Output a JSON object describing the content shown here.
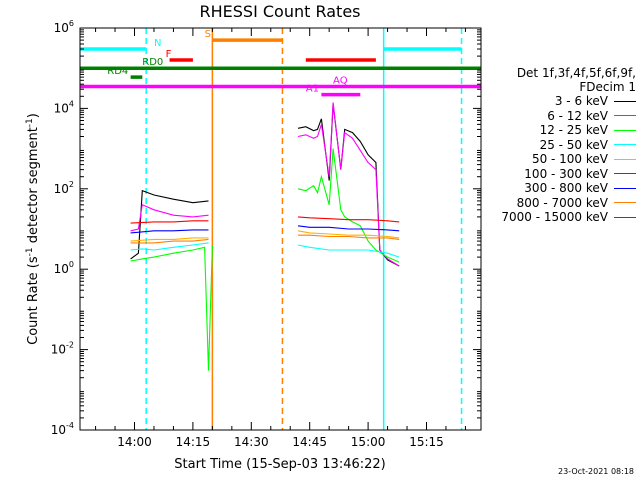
{
  "chart_data": {
    "type": "line",
    "title": "RHESSI Count Rates",
    "xlabel": "Start Time (15-Sep-03 13:46:22)",
    "ylabel_main": "Count Rate (s",
    "ylabel_sup1": "-1",
    "ylabel_mid": " detector segment",
    "ylabel_sup2": "-1",
    "ylabel_end": ")",
    "xlim": [
      "13:46",
      "15:29"
    ],
    "x_ticks": [
      "14:00",
      "14:15",
      "14:30",
      "14:45",
      "15:00",
      "15:15"
    ],
    "y_scale": "log",
    "ylim": [
      0.0001,
      1000000
    ],
    "y_ticks": [
      {
        "base": "10",
        "exp": "-4"
      },
      {
        "base": "10",
        "exp": "-2"
      },
      {
        "base": "10",
        "exp": "0"
      },
      {
        "base": "10",
        "exp": "2"
      },
      {
        "base": "10",
        "exp": "4"
      },
      {
        "base": "10",
        "exp": "6"
      }
    ],
    "legend_header": [
      "Det 1f,3f,4f,5f,6f,9f,",
      "FDecim 1"
    ],
    "series": [
      {
        "name": "3 - 6 keV",
        "color": "#000000",
        "segments": [
          {
            "x": [
              "13:59",
              "14:01",
              "14:02",
              "14:05",
              "14:10",
              "14:15",
              "14:19"
            ],
            "y": [
              1.8,
              2.5,
              90,
              70,
              55,
              45,
              50
            ]
          },
          {
            "x": [
              "14:42",
              "14:44",
              "14:46",
              "14:47",
              "14:48",
              "14:50",
              "14:51",
              "14:53",
              "14:54",
              "14:56",
              "14:58",
              "15:00",
              "15:02",
              "15:03",
              "15:05",
              "15:08"
            ],
            "y": [
              3200,
              3500,
              2800,
              3000,
              5500,
              160,
              13000,
              300,
              3000,
              2500,
              1500,
              700,
              450,
              3,
              1.7,
              1.2
            ]
          }
        ]
      },
      {
        "name": "6 - 12 keV",
        "color": "#ff00ff",
        "segments": [
          {
            "x": [
              "13:59",
              "14:01",
              "14:02",
              "14:05",
              "14:10",
              "14:15",
              "14:19"
            ],
            "y": [
              9,
              10,
              40,
              30,
              22,
              20,
              22
            ]
          },
          {
            "x": [
              "14:42",
              "14:44",
              "14:46",
              "14:47",
              "14:48",
              "14:50",
              "14:51",
              "14:53",
              "14:54",
              "14:56",
              "14:58",
              "15:00",
              "15:02",
              "15:03",
              "15:05",
              "15:08"
            ],
            "y": [
              2000,
              2200,
              1800,
              2000,
              4000,
              200,
              14000,
              300,
              2500,
              1800,
              900,
              450,
              300,
              3,
              1.8,
              1.2
            ]
          }
        ]
      },
      {
        "name": "12 - 25 keV",
        "color": "#00ff00",
        "segments": [
          {
            "x": [
              "13:59",
              "14:02",
              "14:05",
              "14:10",
              "14:15",
              "14:18",
              "14:19",
              "14:20"
            ],
            "y": [
              1.6,
              1.8,
              2,
              2.5,
              3,
              3.5,
              0.003,
              4
            ]
          },
          {
            "x": [
              "14:42",
              "14:44",
              "14:46",
              "14:47",
              "14:48",
              "14:50",
              "14:51",
              "14:53",
              "14:54",
              "14:56",
              "14:58",
              "15:00",
              "15:02",
              "15:05",
              "15:08"
            ],
            "y": [
              100,
              90,
              120,
              80,
              200,
              40,
              1000,
              30,
              20,
              15,
              12,
              5,
              3,
              2,
              1.5
            ]
          }
        ]
      },
      {
        "name": "25 - 50 keV",
        "color": "#00ffff",
        "segments": [
          {
            "x": [
              "13:59",
              "14:02",
              "14:05",
              "14:10",
              "14:15",
              "14:19"
            ],
            "y": [
              3,
              3.2,
              3,
              3.5,
              4,
              4.5
            ]
          },
          {
            "x": [
              "14:42",
              "14:45",
              "14:50",
              "14:55",
              "15:00",
              "15:05",
              "15:08"
            ],
            "y": [
              4,
              3.5,
              3,
              3,
              3,
              2.5,
              2
            ]
          }
        ]
      },
      {
        "name": "50 - 100 keV",
        "color": "#ffb000",
        "segments": [
          {
            "x": [
              "13:59",
              "14:05",
              "14:10",
              "14:15",
              "14:19"
            ],
            "y": [
              5,
              5.5,
              5.5,
              6,
              6
            ]
          },
          {
            "x": [
              "14:42",
              "14:45",
              "14:50",
              "14:55",
              "15:00",
              "15:05",
              "15:08"
            ],
            "y": [
              9,
              8,
              7.5,
              7,
              7,
              6.5,
              6
            ]
          }
        ]
      },
      {
        "name": "100 - 300 keV",
        "color": "#ff0000",
        "segments": [
          {
            "x": [
              "13:59",
              "14:05",
              "14:10",
              "14:15",
              "14:19"
            ],
            "y": [
              14,
              15,
              15,
              16,
              16
            ]
          },
          {
            "x": [
              "14:42",
              "14:45",
              "14:50",
              "14:55",
              "15:00",
              "15:05",
              "15:08"
            ],
            "y": [
              20,
              19,
              18,
              17,
              17,
              16,
              15
            ]
          }
        ]
      },
      {
        "name": "300 - 800 keV",
        "color": "#0000ff",
        "segments": [
          {
            "x": [
              "13:59",
              "14:05",
              "14:10",
              "14:15",
              "14:19"
            ],
            "y": [
              8,
              9,
              9,
              9.5,
              9.5
            ]
          },
          {
            "x": [
              "14:42",
              "14:45",
              "14:50",
              "14:55",
              "15:00",
              "15:05",
              "15:08"
            ],
            "y": [
              12,
              11,
              11,
              10,
              10,
              9.5,
              9
            ]
          }
        ]
      },
      {
        "name": "800 - 7000 keV",
        "color": "#ff8000",
        "segments": [
          {
            "x": [
              "13:59",
              "14:05",
              "14:10",
              "14:15",
              "14:19"
            ],
            "y": [
              4.5,
              4.5,
              5,
              5,
              5.5
            ]
          },
          {
            "x": [
              "14:42",
              "14:45",
              "14:50",
              "14:55",
              "15:00",
              "15:05",
              "15:08"
            ],
            "y": [
              7,
              7,
              6.5,
              6.5,
              6,
              6,
              5.5
            ]
          }
        ]
      },
      {
        "name": "7000 - 15000 keV",
        "color": "#008000",
        "segments": []
      }
    ],
    "vlines": [
      {
        "x": "14:03",
        "color": "#00ffff",
        "style": "dashed"
      },
      {
        "x": "14:20",
        "color": "#ff8000",
        "style": "solid"
      },
      {
        "x": "14:38",
        "color": "#ff8000",
        "style": "dashed"
      },
      {
        "x": "15:04",
        "color": "#00ffff",
        "style": "solid"
      },
      {
        "x": "15:24",
        "color": "#00ffff",
        "style": "dashed"
      }
    ],
    "flag_bars": [
      {
        "label": "N",
        "color": "#00ffff",
        "segments": [
          [
            "13:46",
            "14:03"
          ],
          [
            "15:04",
            "15:24"
          ]
        ],
        "level": 300000,
        "label_at": "14:05"
      },
      {
        "label": "F",
        "color": "#ff0000",
        "segments": [
          [
            "14:09",
            "14:15"
          ],
          [
            "14:44",
            "15:02"
          ]
        ],
        "level": 160000,
        "label_at": "14:08"
      },
      {
        "label": "S",
        "color": "#ff8000",
        "segments": [
          [
            "14:20",
            "14:38"
          ]
        ],
        "level": 500000,
        "label_at": "14:18"
      },
      {
        "label": "RD0",
        "color": "#008000",
        "segments": [
          [
            "13:46",
            "15:29"
          ]
        ],
        "level": 100000,
        "label_at": "14:02"
      },
      {
        "label": "RD4",
        "color": "#008000",
        "segments": [
          [
            "13:59",
            "14:02"
          ]
        ],
        "level": 60000,
        "label_at": "13:53"
      },
      {
        "label": "AQ",
        "color": "#ff00ff",
        "segments": [
          [
            "13:46",
            "15:29"
          ]
        ],
        "level": 35000,
        "label_at": "14:51"
      },
      {
        "label": "A1",
        "color": "#ff00ff",
        "segments": [
          [
            "14:48",
            "14:58"
          ]
        ],
        "level": 22000,
        "label_at": "14:44"
      }
    ],
    "footer_date": "23-Oct-2021 08:18"
  }
}
